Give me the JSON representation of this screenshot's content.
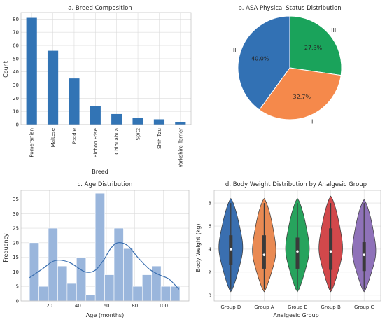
{
  "chart_data": [
    {
      "type": "bar",
      "title": "a. Breed Composition",
      "xlabel": "Breed",
      "ylabel": "Count",
      "categories": [
        "Pomeranian",
        "Maltese",
        "Poodle",
        "Bichon Frise",
        "Chihuahua",
        "Spitz",
        "Shih Tzu",
        "Yorkshire Terrier"
      ],
      "values": [
        81,
        56,
        35,
        14,
        8,
        5,
        4,
        2
      ],
      "ylim": [
        0,
        85
      ],
      "yticks": [
        0,
        10,
        20,
        30,
        40,
        50,
        60,
        70,
        80
      ],
      "grid": true,
      "color": "#3274b5"
    },
    {
      "type": "pie",
      "title": "b. ASA Physical Status Distribution",
      "labels": [
        "III",
        "I",
        "II"
      ],
      "values": [
        27.3,
        32.7,
        40.0
      ],
      "value_labels": [
        "27.3%",
        "32.7%",
        "40.0%"
      ],
      "colors": [
        "#1aa35b",
        "#f5894b",
        "#3271b4"
      ]
    },
    {
      "type": "bar",
      "title": "c. Age Distribution",
      "xlabel": "Age (months)",
      "ylabel": "Frequency",
      "bin_edges": [
        6,
        12.6,
        19.2,
        25.8,
        32.4,
        39,
        45.6,
        52.2,
        58.8,
        65.4,
        72,
        78.6,
        85.2,
        91.8,
        98.4,
        105,
        111.6
      ],
      "values": [
        20,
        5,
        25,
        12,
        6,
        15,
        2,
        37,
        9,
        25,
        18,
        5,
        9,
        12,
        5,
        5
      ],
      "kde": [
        [
          6,
          8
        ],
        [
          15,
          11
        ],
        [
          22,
          13.5
        ],
        [
          28,
          14
        ],
        [
          35,
          13
        ],
        [
          45,
          10
        ],
        [
          52,
          10.5
        ],
        [
          58,
          14
        ],
        [
          63,
          18
        ],
        [
          68,
          20
        ],
        [
          75,
          19
        ],
        [
          82,
          15
        ],
        [
          90,
          11
        ],
        [
          97,
          9
        ],
        [
          104,
          7.5
        ],
        [
          111,
          4
        ]
      ],
      "xticks": [
        20,
        40,
        60,
        80,
        100
      ],
      "yticks": [
        0,
        5,
        10,
        15,
        20,
        25,
        30,
        35
      ],
      "xlim": [
        0,
        118
      ],
      "ylim": [
        0,
        38
      ],
      "grid": true,
      "color": "#9ab6dc",
      "line_color": "#3a6fb0"
    },
    {
      "type": "violin",
      "title": "d. Body Weight Distribution by Analgesic Group",
      "xlabel": "Analgesic Group",
      "ylabel": "Body Weight (kg)",
      "categories": [
        "Group D",
        "Group A",
        "Group E",
        "Group B",
        "Group C"
      ],
      "colors": [
        "#3a6fb0",
        "#e98a53",
        "#27a35d",
        "#d2484b",
        "#8f72b9"
      ],
      "min": [
        0.3,
        0.3,
        0.3,
        0.3,
        0.3
      ],
      "max": [
        8.4,
        8.4,
        8.4,
        8.6,
        8.3
      ],
      "q1": [
        2.6,
        2.3,
        2.3,
        2.2,
        2.1
      ],
      "median": [
        4.0,
        3.5,
        3.8,
        3.8,
        3.5
      ],
      "q3": [
        5.2,
        5.2,
        5.0,
        5.8,
        4.6
      ],
      "whisker_low": [
        0.5,
        0.5,
        0.5,
        0.5,
        0.5
      ],
      "whisker_high": [
        8.0,
        8.0,
        8.0,
        8.0,
        8.0
      ],
      "yticks": [
        0,
        2,
        4,
        6,
        8
      ],
      "ylim": [
        -0.5,
        9.1
      ],
      "grid": true
    }
  ]
}
